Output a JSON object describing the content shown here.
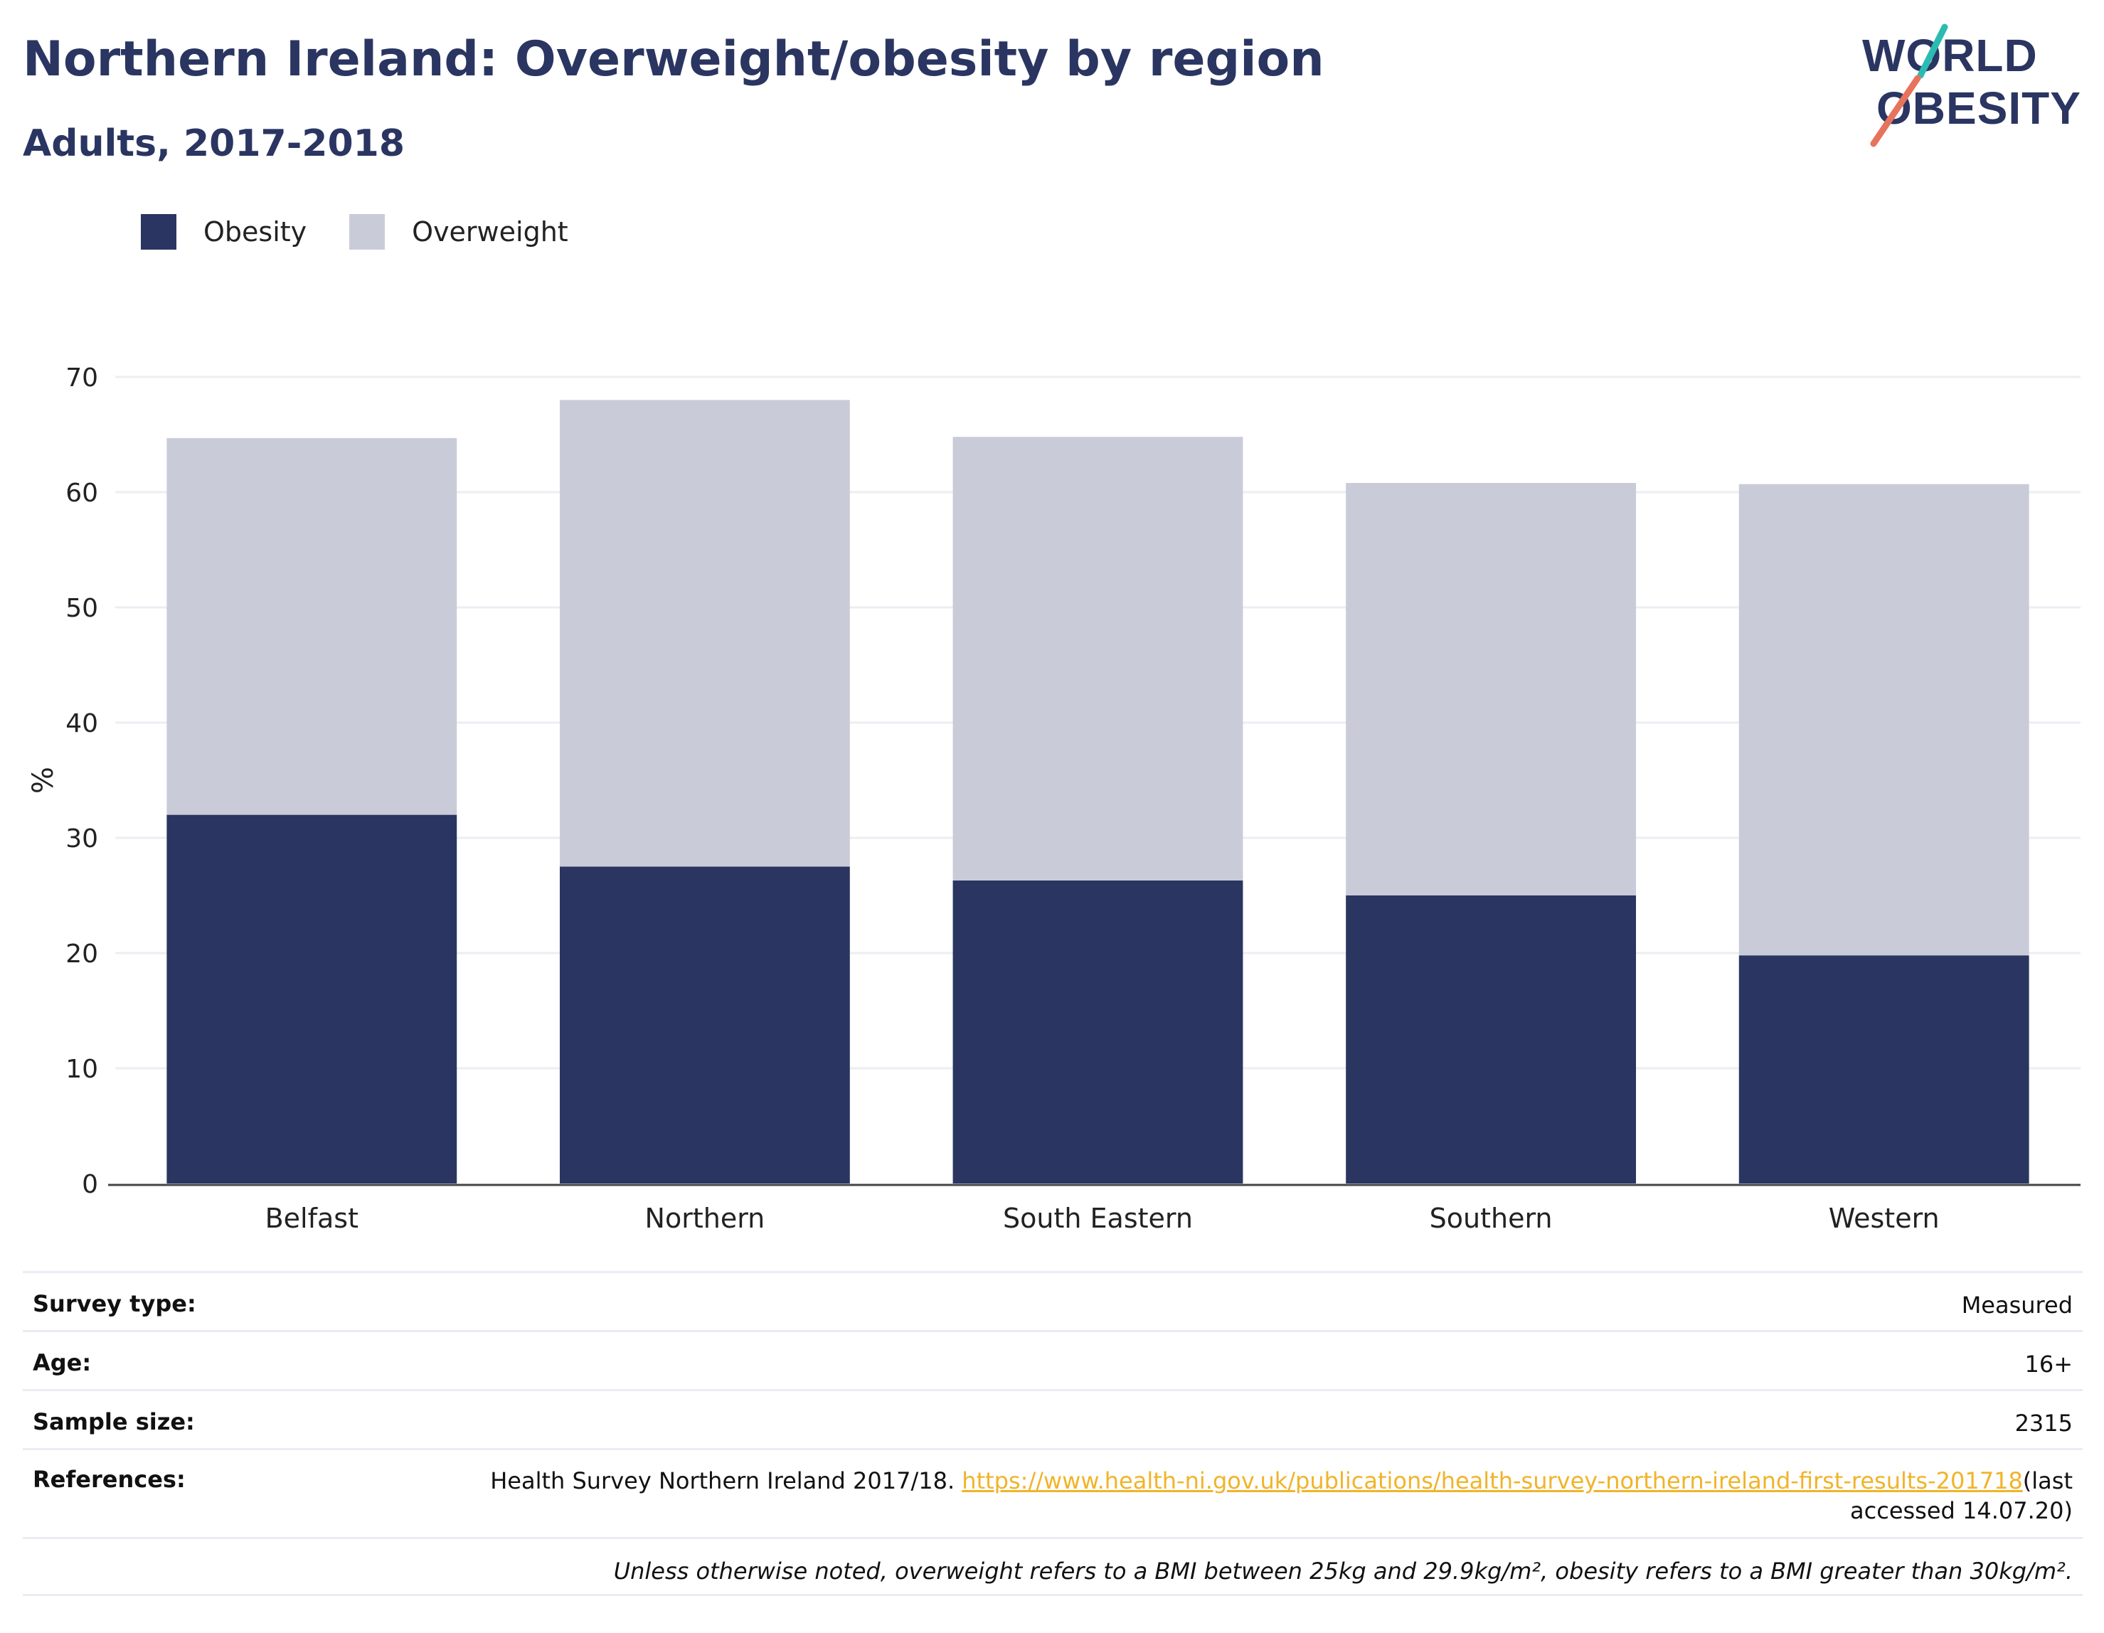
{
  "header": {
    "title": "Northern Ireland: Overweight/obesity by region",
    "subtitle": "Adults, 2017-2018"
  },
  "logo": {
    "line1": "WORLD",
    "line2": "OBESITY",
    "colors": {
      "text": "#2a3561",
      "teal": "#2bbbb3",
      "coral": "#e8735c"
    }
  },
  "legend": [
    {
      "label": "Obesity",
      "color": "#2a3561"
    },
    {
      "label": "Overweight",
      "color": "#c9ccd8"
    }
  ],
  "chart_data": {
    "type": "bar",
    "stacked": true,
    "categories": [
      "Belfast",
      "Northern",
      "South Eastern",
      "Southern",
      "Western"
    ],
    "series": [
      {
        "name": "Obesity",
        "color": "#2a3561",
        "values": [
          32,
          27.5,
          26.3,
          25,
          19.8
        ]
      },
      {
        "name": "Overweight",
        "color": "#c9ccd8",
        "values": [
          32.7,
          40.5,
          38.5,
          35.8,
          40.9
        ]
      }
    ],
    "ylabel": "%",
    "xlabel": "",
    "ylim": [
      0,
      70
    ],
    "yticks": [
      0,
      10,
      20,
      30,
      40,
      50,
      60,
      70
    ],
    "grid": true,
    "legend_position": "top-left"
  },
  "info": {
    "survey_type": {
      "label": "Survey type:",
      "value": "Measured"
    },
    "age": {
      "label": "Age:",
      "value": "16+"
    },
    "sample_size": {
      "label": "Sample size:",
      "value": "2315"
    },
    "references": {
      "label": "References:",
      "text": "Health Survey Northern Ireland 2017/18.",
      "link": "https://www.health-ni.gov.uk/publications/health-survey-northern-ireland-first-results-201718",
      "suffix": "(last accessed 14.07.20)"
    },
    "note": "Unless otherwise noted, overweight refers to a BMI between 25kg and 29.9kg/m², obesity refers to a BMI greater than 30kg/m²."
  }
}
